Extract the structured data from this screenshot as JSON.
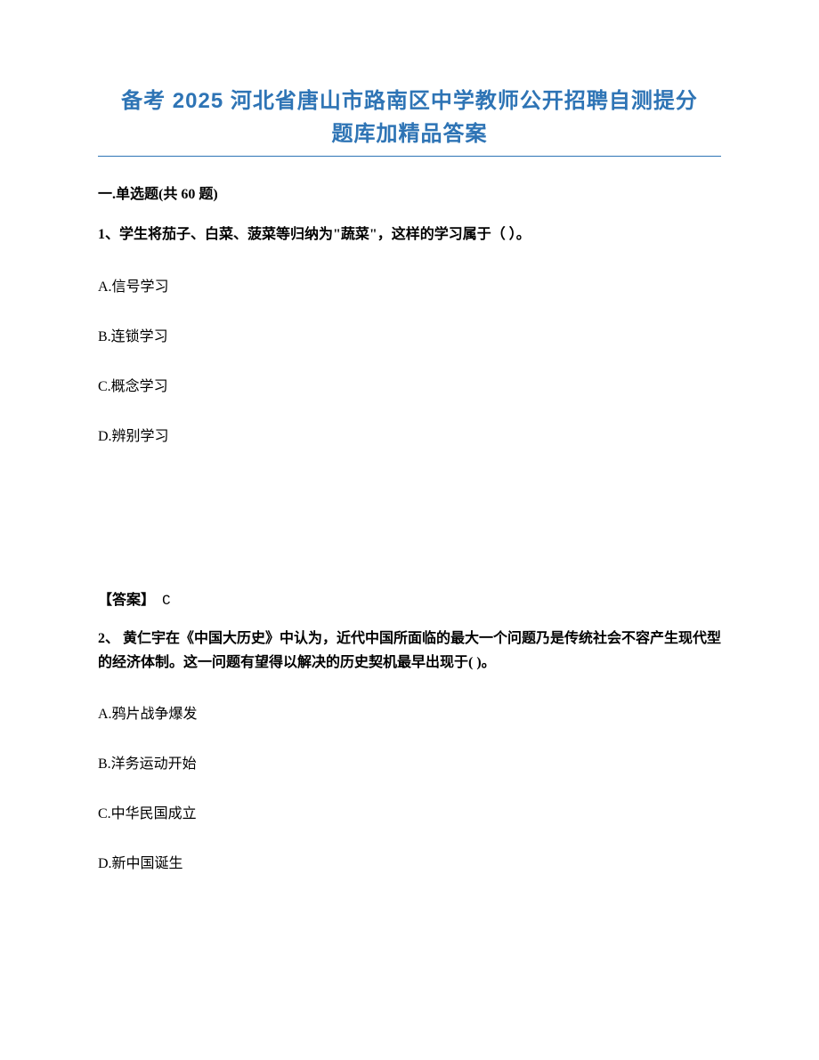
{
  "title": {
    "line1": "备考 2025 河北省唐山市路南区中学教师公开招聘自测提分",
    "line2": "题库加精品答案",
    "color": "#2e74b5"
  },
  "section": {
    "label": "一.单选题(共 60 题)"
  },
  "questions": [
    {
      "stem": "1、学生将茄子、白菜、菠菜等归纳为\"蔬菜\"，这样的学习属于（ ）。",
      "options": [
        "A.信号学习",
        "B.连锁学习",
        "C.概念学习",
        "D.辨别学习"
      ],
      "answer_label": "【答案】",
      "answer_value": "C"
    },
    {
      "stem": "2、 黄仁宇在《中国大历史》中认为，近代中国所面临的最大一个问题乃是传统社会不容产生现代型的经济体制。这一问题有望得以解决的历史契机最早出现于(  )。",
      "options": [
        "A.鸦片战争爆发",
        "B.洋务运动开始",
        "C.中华民国成立",
        "D.新中国诞生"
      ]
    }
  ]
}
